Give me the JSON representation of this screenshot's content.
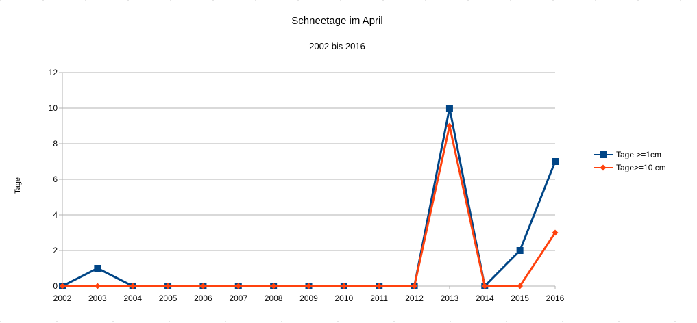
{
  "chart_data": {
    "type": "line",
    "title": "Schneetage im April",
    "subtitle": "2002 bis 2016",
    "xlabel": "",
    "ylabel": "Tage",
    "categories": [
      "2002",
      "2003",
      "2004",
      "2005",
      "2006",
      "2007",
      "2008",
      "2009",
      "2010",
      "2011",
      "2012",
      "2013",
      "2014",
      "2015",
      "2016"
    ],
    "ylim": [
      0,
      12
    ],
    "yticks": [
      "0",
      "2",
      "4",
      "6",
      "8",
      "10",
      "12"
    ],
    "grid": true,
    "legend_position": "right",
    "series": [
      {
        "name": "Tage >=1cm",
        "color": "#004586",
        "marker": "square",
        "values": [
          0,
          1,
          0,
          0,
          0,
          0,
          0,
          0,
          0,
          0,
          0,
          10,
          0,
          2,
          7
        ]
      },
      {
        "name": "Tage>=10 cm",
        "color": "#ff420e",
        "marker": "diamond",
        "values": [
          0,
          0,
          0,
          0,
          0,
          0,
          0,
          0,
          0,
          0,
          0,
          9,
          0,
          0,
          3
        ]
      }
    ]
  }
}
